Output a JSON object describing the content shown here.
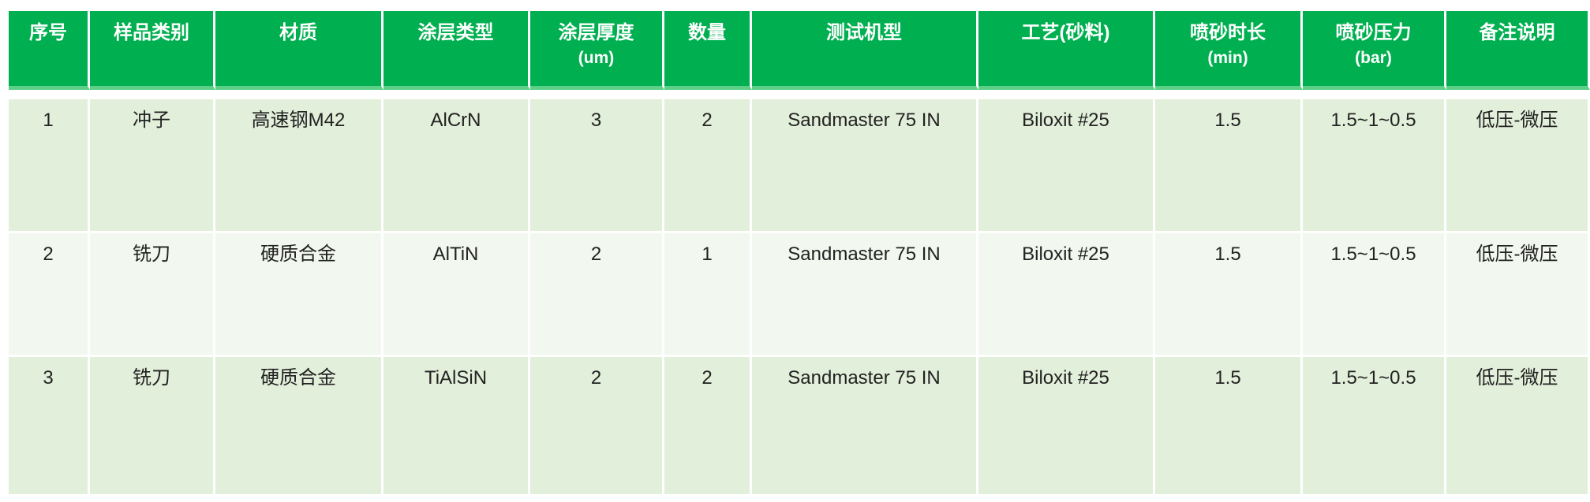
{
  "colors": {
    "header_bg": "#00b050",
    "row_odd": "#e2efda",
    "row_even": "#f2f8ef",
    "header_text": "#ffffff"
  },
  "table": {
    "headers": [
      {
        "label": "序号",
        "sub": ""
      },
      {
        "label": "样品类别",
        "sub": ""
      },
      {
        "label": "材质",
        "sub": ""
      },
      {
        "label": "涂层类型",
        "sub": ""
      },
      {
        "label": "涂层厚度",
        "sub": "(um)"
      },
      {
        "label": "数量",
        "sub": ""
      },
      {
        "label": "测试机型",
        "sub": ""
      },
      {
        "label": "工艺(砂料)",
        "sub": ""
      },
      {
        "label": "喷砂时长",
        "sub": "(min)"
      },
      {
        "label": "喷砂压力",
        "sub": "(bar)"
      },
      {
        "label": "备注说明",
        "sub": ""
      }
    ],
    "rows": [
      [
        "1",
        "冲子",
        "高速钢M42",
        "AlCrN",
        "3",
        "2",
        "Sandmaster 75 IN",
        "Biloxit #25",
        "1.5",
        "1.5~1~0.5",
        "低压-微压"
      ],
      [
        "2",
        "铣刀",
        "硬质合金",
        "AlTiN",
        "2",
        "1",
        "Sandmaster 75 IN",
        "Biloxit #25",
        "1.5",
        "1.5~1~0.5",
        "低压-微压"
      ],
      [
        "3",
        "铣刀",
        "硬质合金",
        "TiAlSiN",
        "2",
        "2",
        "Sandmaster 75 IN",
        "Biloxit #25",
        "1.5",
        "1.5~1~0.5",
        "低压-微压"
      ]
    ]
  }
}
